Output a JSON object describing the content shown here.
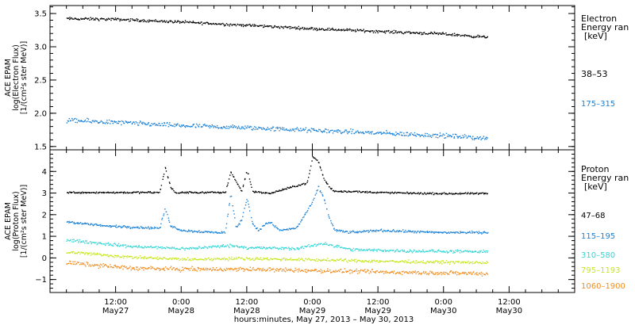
{
  "colors": {
    "black": "#000000",
    "blue": "#1a80d6",
    "cyan": "#33d6d6",
    "yellow": "#c8e61e",
    "orange": "#f08c1e"
  },
  "chart_data": [
    {
      "type": "scatter",
      "panel": "electron",
      "ylabel_lines": [
        "ACE EPAM",
        "log(Electron Flux)",
        "[1/(cm²s ster MeV)]"
      ],
      "ylim": [
        1.45,
        3.62
      ],
      "yticks": [
        1.5,
        2.0,
        2.5,
        3.0,
        3.5
      ],
      "ytick_labels": [
        "1.5",
        "2.0",
        "2.5",
        "3.0",
        "3.5"
      ],
      "legend_title_lines": [
        "Electron",
        "Energy ran",
        "[keV]"
      ],
      "series": [
        {
          "name": "38–53",
          "color": "#000000",
          "x": [
            3,
            12,
            24,
            36,
            48,
            60,
            72,
            80
          ],
          "y": [
            3.43,
            3.42,
            3.38,
            3.33,
            3.28,
            3.24,
            3.2,
            3.15
          ],
          "noise": 0.03
        },
        {
          "name": "175–315",
          "color": "#1a80d6",
          "x": [
            3,
            12,
            24,
            36,
            48,
            60,
            72,
            80
          ],
          "y": [
            1.9,
            1.87,
            1.82,
            1.79,
            1.75,
            1.71,
            1.67,
            1.63
          ],
          "noise": 0.05
        }
      ]
    },
    {
      "type": "scatter",
      "panel": "proton",
      "ylabel_lines": [
        "ACE EPAM",
        "log(Proton Flux)",
        "[1/(cm²s ster MeV)]"
      ],
      "ylim": [
        -1.6,
        5.0
      ],
      "yticks": [
        -1,
        0,
        1,
        2,
        3,
        4
      ],
      "ytick_labels": [
        "−1",
        "0",
        "1",
        "2",
        "3",
        "4"
      ],
      "legend_title_lines": [
        "Proton",
        "Energy ran",
        "[keV]"
      ],
      "series": [
        {
          "name": "47–68",
          "color": "#000000",
          "x": [
            3,
            20,
            21,
            22,
            23,
            24,
            32,
            33,
            35,
            36,
            37,
            40,
            47,
            48,
            49,
            50,
            51,
            52,
            55,
            60,
            70,
            80
          ],
          "y": [
            3.05,
            3.05,
            4.2,
            3.3,
            3.0,
            3.05,
            3.05,
            4.0,
            3.1,
            4.1,
            3.1,
            3.0,
            3.5,
            4.7,
            4.5,
            3.7,
            3.3,
            3.1,
            3.1,
            3.05,
            3.0,
            3.0
          ],
          "noise": 0.06
        },
        {
          "name": "115–195",
          "color": "#1a80d6",
          "x": [
            3,
            10,
            20,
            21,
            22,
            24,
            30,
            32,
            33,
            34,
            35,
            36,
            37,
            38,
            40,
            42,
            45,
            48,
            49,
            50,
            51,
            52,
            55,
            60,
            70,
            80
          ],
          "y": [
            1.7,
            1.5,
            1.4,
            2.3,
            1.5,
            1.3,
            1.2,
            1.2,
            3.0,
            1.4,
            1.8,
            2.8,
            1.6,
            1.3,
            1.7,
            1.3,
            1.4,
            2.6,
            3.3,
            2.8,
            1.9,
            1.3,
            1.2,
            1.3,
            1.2,
            1.2
          ],
          "noise": 0.08
        },
        {
          "name": "310–580",
          "color": "#33d6d6",
          "x": [
            3,
            15,
            25,
            33,
            36,
            45,
            50,
            55,
            65,
            80
          ],
          "y": [
            0.85,
            0.55,
            0.45,
            0.6,
            0.5,
            0.45,
            0.7,
            0.4,
            0.35,
            0.3
          ],
          "noise": 0.1
        },
        {
          "name": "795–1193",
          "color": "#c8e61e",
          "x": [
            3,
            15,
            25,
            35,
            45,
            55,
            65,
            80
          ],
          "y": [
            0.3,
            0.05,
            -0.05,
            0.0,
            -0.05,
            -0.1,
            -0.15,
            -0.2
          ],
          "noise": 0.1
        },
        {
          "name": "1060–1900",
          "color": "#f08c1e",
          "x": [
            3,
            15,
            25,
            35,
            45,
            55,
            65,
            80
          ],
          "y": [
            -0.2,
            -0.45,
            -0.5,
            -0.5,
            -0.55,
            -0.6,
            -0.65,
            -0.7
          ],
          "noise": 0.14
        }
      ]
    }
  ],
  "xaxis": {
    "xlim": [
      0,
      96
    ],
    "ticks": [
      {
        "x": 12,
        "time": "12:00",
        "date": "May27"
      },
      {
        "x": 24,
        "time": "0:00",
        "date": "May28"
      },
      {
        "x": 36,
        "time": "12:00",
        "date": "May28"
      },
      {
        "x": 48,
        "time": "0:00",
        "date": "May29"
      },
      {
        "x": 60,
        "time": "12:00",
        "date": "May29"
      },
      {
        "x": 72,
        "time": "0:00",
        "date": "May30"
      },
      {
        "x": 84,
        "time": "12:00",
        "date": "May30"
      }
    ],
    "xlabel": "hours:minutes, May 27, 2013 – May 30, 2013"
  }
}
